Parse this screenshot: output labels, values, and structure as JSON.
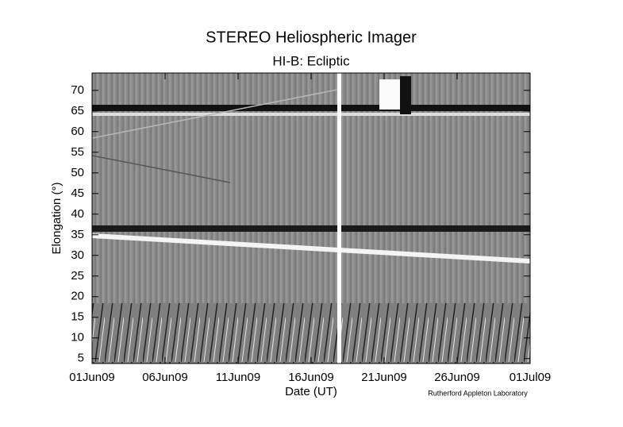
{
  "chart_data": {
    "type": "image",
    "title": "STEREO Heliospheric Imager",
    "subtitle": "HI-B: Ecliptic",
    "y_label": "Elongation (°)",
    "x_label": "Date (UT)",
    "credit": "Rutherford Appleton Laboratory",
    "xlim": [
      "2009-06-01",
      "2009-07-01"
    ],
    "xticks": [
      {
        "value": "2009-06-01",
        "label": "01Jun09"
      },
      {
        "value": "2009-06-06",
        "label": "06Jun09"
      },
      {
        "value": "2009-06-11",
        "label": "11Jun09"
      },
      {
        "value": "2009-06-16",
        "label": "16Jun09"
      },
      {
        "value": "2009-06-21",
        "label": "21Jun09"
      },
      {
        "value": "2009-06-26",
        "label": "26Jun09"
      },
      {
        "value": "2009-07-01",
        "label": "01Jul09"
      }
    ],
    "ylim": [
      3.8,
      74.2
    ],
    "yticks": [
      5,
      10,
      15,
      20,
      25,
      30,
      35,
      40,
      45,
      50,
      55,
      60,
      65,
      70
    ]
  }
}
